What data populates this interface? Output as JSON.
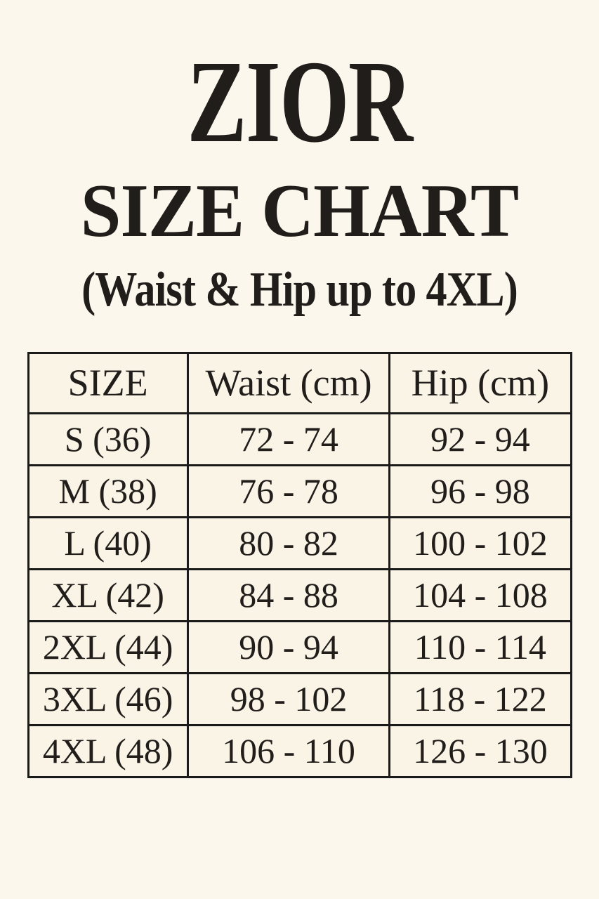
{
  "header": {
    "brand": "ZIOR",
    "title": "SIZE CHART",
    "subtitle": "(Waist & Hip up to 4XL)"
  },
  "table": {
    "columns": [
      "SIZE",
      "Waist (cm)",
      "Hip (cm)"
    ],
    "rows": [
      {
        "size": "S (36)",
        "waist": "72 - 74",
        "hip": "92 - 94"
      },
      {
        "size": "M (38)",
        "waist": "76 - 78",
        "hip": "96 - 98"
      },
      {
        "size": "L (40)",
        "waist": "80 - 82",
        "hip": "100 - 102"
      },
      {
        "size": "XL (42)",
        "waist": "84 - 88",
        "hip": "104 - 108"
      },
      {
        "size": "2XL (44)",
        "waist": "90 - 94",
        "hip": "110 - 114"
      },
      {
        "size": "3XL (46)",
        "waist": "98 - 102",
        "hip": "118 - 122"
      },
      {
        "size": "4XL (48)",
        "waist": "106 - 110",
        "hip": "126 - 130"
      }
    ]
  },
  "colors": {
    "page_background": "#FCF7EC",
    "table_background": "#F9F4E6",
    "text": "#211D1A",
    "border": "#1A1A1A"
  }
}
